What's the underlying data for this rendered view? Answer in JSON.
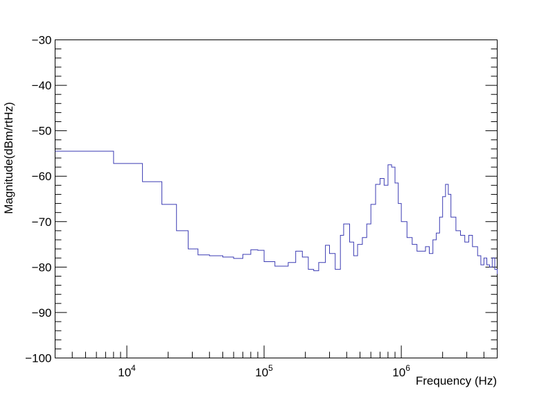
{
  "chart_data": {
    "type": "line",
    "xlabel": "Frequency (Hz)",
    "ylabel": "Magnitude(dBm/rtHz)",
    "x_scale": "log",
    "xlim": [
      3000,
      5000000
    ],
    "ylim": [
      -100,
      -30
    ],
    "y_ticks": [
      -100,
      -90,
      -80,
      -70,
      -60,
      -50,
      -40,
      -30
    ],
    "y_tick_labels": [
      "−100",
      "−90",
      "−80",
      "−70",
      "−60",
      "−50",
      "−40",
      "−30"
    ],
    "x_tick_bases": [
      "10",
      "10",
      "10"
    ],
    "x_tick_exponents": [
      "4",
      "5",
      "6"
    ],
    "x_tick_values": [
      10000,
      100000,
      1000000
    ],
    "grid": false,
    "line_color": "#3b3bb3",
    "series": [
      {
        "step": true,
        "x": [
          3000,
          8000,
          13000,
          18000,
          23000,
          28000,
          33000,
          40000,
          50000,
          60000,
          70000,
          80000,
          90000,
          100000,
          120000,
          150000,
          170000,
          190000,
          210000,
          230000,
          250000,
          280000,
          300000,
          330000,
          360000,
          380000,
          420000,
          450000,
          480000,
          520000,
          560000,
          600000,
          650000,
          700000,
          750000,
          800000,
          850000,
          900000,
          950000,
          1000000,
          1100000,
          1200000,
          1300000,
          1400000,
          1500000,
          1600000,
          1700000,
          1800000,
          1900000,
          2000000,
          2100000,
          2200000,
          2300000,
          2500000,
          2700000,
          2900000,
          3100000,
          3300000,
          3600000,
          3800000,
          4000000,
          4200000,
          4400000,
          4600000,
          4800000,
          5000000
        ],
        "y": [
          -54.5,
          -57.2,
          -61.2,
          -66.2,
          -72.0,
          -76.0,
          -77.3,
          -77.5,
          -77.8,
          -78.1,
          -77.2,
          -76.2,
          -76.3,
          -78.8,
          -79.8,
          -79.0,
          -76.5,
          -77.8,
          -80.5,
          -80.8,
          -79.0,
          -75.2,
          -77.0,
          -80.5,
          -73.0,
          -70.5,
          -74.5,
          -77.5,
          -75.0,
          -73.5,
          -70.5,
          -66.2,
          -61.8,
          -60.5,
          -62.0,
          -57.5,
          -58.0,
          -61.5,
          -66.0,
          -70.0,
          -73.5,
          -75.0,
          -76.5,
          -76.5,
          -75.5,
          -77.0,
          -74.0,
          -72.5,
          -69.0,
          -64.5,
          -61.8,
          -64.0,
          -69.0,
          -72.0,
          -73.0,
          -74.5,
          -73.0,
          -75.5,
          -77.5,
          -79.5,
          -78.0,
          -79.5,
          -80.0,
          -78.0,
          -80.5,
          -81.5
        ]
      }
    ]
  }
}
